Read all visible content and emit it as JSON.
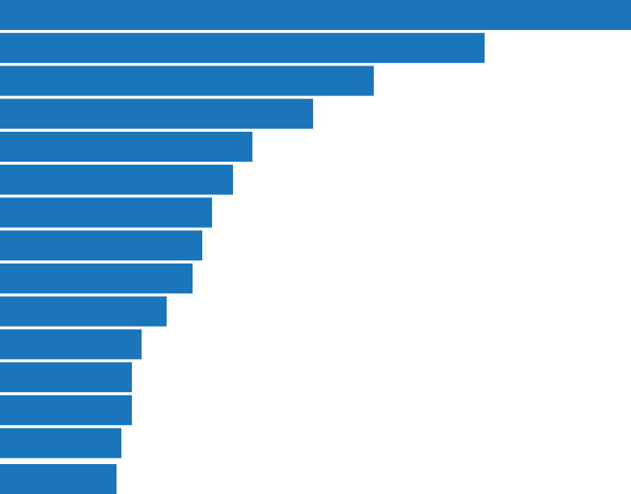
{
  "chart_data": {
    "type": "barh",
    "values": [
      780,
      599,
      462,
      387,
      312,
      288,
      262,
      250,
      238,
      206,
      175,
      163,
      163,
      150,
      144
    ],
    "color": "#1a75bb",
    "xlim": [
      0,
      780
    ]
  }
}
